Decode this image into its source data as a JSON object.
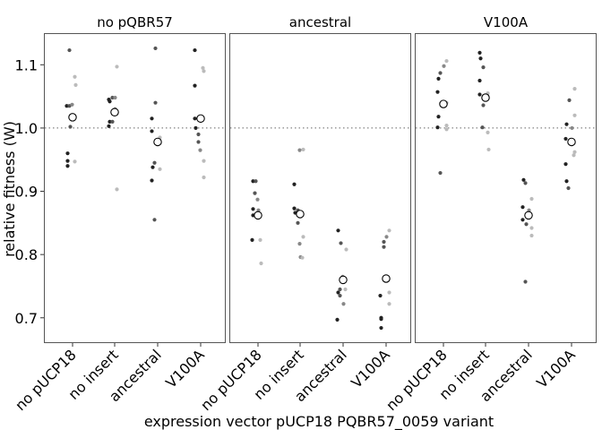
{
  "chart_data": {
    "type": "scatter",
    "ylabel": "relative fitness (W)",
    "xlabel": "expression vector pUCP18 PQBR57_0059 variant",
    "ylim": [
      0.66,
      1.15
    ],
    "yticks": [
      0.7,
      0.8,
      0.9,
      1.0,
      1.1
    ],
    "ytick_labels": [
      "0.7",
      "0.8",
      "0.9",
      "1.0",
      "1.1"
    ],
    "reference_line": 1.0,
    "categories": [
      "no pUCP18",
      "no insert",
      "ancestral",
      "V100A"
    ],
    "replicate_shades": [
      "#222222",
      "#555555",
      "#888888",
      "#bbbbbb"
    ],
    "mean_marker": "open-circle",
    "grid": false,
    "panels": [
      {
        "name": "no pQBR57",
        "groups": [
          {
            "category": "no pUCP18",
            "mean": 1.017,
            "points": [
              {
                "v": 0.96,
                "s": 0
              },
              {
                "v": 0.948,
                "s": 0
              },
              {
                "v": 0.94,
                "s": 0
              },
              {
                "v": 1.035,
                "s": 0
              },
              {
                "v": 1.035,
                "s": 1
              },
              {
                "v": 1.002,
                "s": 1
              },
              {
                "v": 1.123,
                "s": 1
              },
              {
                "v": 1.037,
                "s": 2
              },
              {
                "v": 1.068,
                "s": 3
              },
              {
                "v": 1.081,
                "s": 3
              },
              {
                "v": 0.947,
                "s": 3
              }
            ]
          },
          {
            "category": "no insert",
            "mean": 1.025,
            "points": [
              {
                "v": 1.045,
                "s": 0
              },
              {
                "v": 1.01,
                "s": 0
              },
              {
                "v": 1.003,
                "s": 0
              },
              {
                "v": 1.042,
                "s": 0
              },
              {
                "v": 1.048,
                "s": 1
              },
              {
                "v": 1.01,
                "s": 1
              },
              {
                "v": 1.03,
                "s": 2
              },
              {
                "v": 1.048,
                "s": 2
              },
              {
                "v": 1.097,
                "s": 3
              },
              {
                "v": 0.903,
                "s": 3
              }
            ]
          },
          {
            "category": "ancestral",
            "mean": 0.978,
            "points": [
              {
                "v": 1.015,
                "s": 0
              },
              {
                "v": 0.995,
                "s": 0
              },
              {
                "v": 0.938,
                "s": 0
              },
              {
                "v": 0.917,
                "s": 0
              },
              {
                "v": 1.04,
                "s": 1
              },
              {
                "v": 0.945,
                "s": 1
              },
              {
                "v": 1.126,
                "s": 1
              },
              {
                "v": 0.855,
                "s": 1
              },
              {
                "v": 0.985,
                "s": 3
              },
              {
                "v": 0.935,
                "s": 3
              }
            ]
          },
          {
            "category": "V100A",
            "mean": 1.015,
            "points": [
              {
                "v": 1.123,
                "s": 0
              },
              {
                "v": 1.067,
                "s": 0
              },
              {
                "v": 1.0,
                "s": 0
              },
              {
                "v": 1.015,
                "s": 0
              },
              {
                "v": 0.99,
                "s": 1
              },
              {
                "v": 0.978,
                "s": 1
              },
              {
                "v": 0.965,
                "s": 2
              },
              {
                "v": 1.095,
                "s": 3
              },
              {
                "v": 1.09,
                "s": 3
              },
              {
                "v": 0.948,
                "s": 3
              },
              {
                "v": 0.922,
                "s": 3
              }
            ]
          }
        ]
      },
      {
        "name": "ancestral",
        "groups": [
          {
            "category": "no pUCP18",
            "mean": 0.862,
            "points": [
              {
                "v": 0.916,
                "s": 0
              },
              {
                "v": 0.872,
                "s": 0
              },
              {
                "v": 0.823,
                "s": 0
              },
              {
                "v": 0.862,
                "s": 0
              },
              {
                "v": 0.916,
                "s": 1
              },
              {
                "v": 0.897,
                "s": 1
              },
              {
                "v": 0.887,
                "s": 2
              },
              {
                "v": 0.87,
                "s": 2
              },
              {
                "v": 0.823,
                "s": 3
              },
              {
                "v": 0.786,
                "s": 3
              }
            ]
          },
          {
            "category": "no insert",
            "mean": 0.864,
            "points": [
              {
                "v": 0.911,
                "s": 0
              },
              {
                "v": 0.873,
                "s": 0
              },
              {
                "v": 0.866,
                "s": 0
              },
              {
                "v": 0.87,
                "s": 1
              },
              {
                "v": 0.85,
                "s": 1
              },
              {
                "v": 0.965,
                "s": 2
              },
              {
                "v": 0.817,
                "s": 2
              },
              {
                "v": 0.796,
                "s": 2
              },
              {
                "v": 0.966,
                "s": 3
              },
              {
                "v": 0.828,
                "s": 3
              },
              {
                "v": 0.795,
                "s": 3
              }
            ]
          },
          {
            "category": "ancestral",
            "mean": 0.76,
            "points": [
              {
                "v": 0.838,
                "s": 0
              },
              {
                "v": 0.74,
                "s": 0
              },
              {
                "v": 0.697,
                "s": 0
              },
              {
                "v": 0.818,
                "s": 1
              },
              {
                "v": 0.745,
                "s": 1
              },
              {
                "v": 0.735,
                "s": 1
              },
              {
                "v": 0.722,
                "s": 2
              },
              {
                "v": 0.765,
                "s": 2
              },
              {
                "v": 0.808,
                "s": 3
              },
              {
                "v": 0.745,
                "s": 3
              }
            ]
          },
          {
            "category": "V100A",
            "mean": 0.762,
            "points": [
              {
                "v": 0.735,
                "s": 0
              },
              {
                "v": 0.7,
                "s": 0
              },
              {
                "v": 0.698,
                "s": 0
              },
              {
                "v": 0.684,
                "s": 0
              },
              {
                "v": 0.82,
                "s": 1
              },
              {
                "v": 0.812,
                "s": 1
              },
              {
                "v": 0.828,
                "s": 2
              },
              {
                "v": 0.765,
                "s": 2
              },
              {
                "v": 0.838,
                "s": 3
              },
              {
                "v": 0.74,
                "s": 3
              },
              {
                "v": 0.722,
                "s": 3
              }
            ]
          }
        ]
      },
      {
        "name": "V100A",
        "groups": [
          {
            "category": "no pUCP18",
            "mean": 1.038,
            "points": [
              {
                "v": 1.078,
                "s": 0
              },
              {
                "v": 1.057,
                "s": 0
              },
              {
                "v": 1.018,
                "s": 0
              },
              {
                "v": 1.001,
                "s": 0
              },
              {
                "v": 1.087,
                "s": 1
              },
              {
                "v": 0.929,
                "s": 1
              },
              {
                "v": 1.098,
                "s": 2
              },
              {
                "v": 1.106,
                "s": 3
              },
              {
                "v": 1.04,
                "s": 3
              },
              {
                "v": 1.004,
                "s": 3
              },
              {
                "v": 0.998,
                "s": 3
              }
            ]
          },
          {
            "category": "no insert",
            "mean": 1.048,
            "points": [
              {
                "v": 1.119,
                "s": 0
              },
              {
                "v": 1.11,
                "s": 0
              },
              {
                "v": 1.075,
                "s": 0
              },
              {
                "v": 1.053,
                "s": 0
              },
              {
                "v": 1.096,
                "s": 1
              },
              {
                "v": 1.036,
                "s": 1
              },
              {
                "v": 1.001,
                "s": 1
              },
              {
                "v": 1.055,
                "s": 3
              },
              {
                "v": 0.993,
                "s": 3
              },
              {
                "v": 0.966,
                "s": 3
              }
            ]
          },
          {
            "category": "ancestral",
            "mean": 0.862,
            "points": [
              {
                "v": 0.918,
                "s": 0
              },
              {
                "v": 0.875,
                "s": 0
              },
              {
                "v": 0.855,
                "s": 0
              },
              {
                "v": 0.913,
                "s": 1
              },
              {
                "v": 0.848,
                "s": 1
              },
              {
                "v": 0.757,
                "s": 1
              },
              {
                "v": 0.87,
                "s": 2
              },
              {
                "v": 0.888,
                "s": 3
              },
              {
                "v": 0.842,
                "s": 3
              },
              {
                "v": 0.83,
                "s": 3
              }
            ]
          },
          {
            "category": "V100A",
            "mean": 0.978,
            "points": [
              {
                "v": 1.006,
                "s": 0
              },
              {
                "v": 0.983,
                "s": 0
              },
              {
                "v": 0.943,
                "s": 0
              },
              {
                "v": 0.916,
                "s": 0
              },
              {
                "v": 1.044,
                "s": 1
              },
              {
                "v": 0.905,
                "s": 1
              },
              {
                "v": 1.0,
                "s": 2
              },
              {
                "v": 1.062,
                "s": 3
              },
              {
                "v": 1.02,
                "s": 3
              },
              {
                "v": 0.962,
                "s": 3
              },
              {
                "v": 0.957,
                "s": 3
              }
            ]
          }
        ]
      }
    ]
  }
}
